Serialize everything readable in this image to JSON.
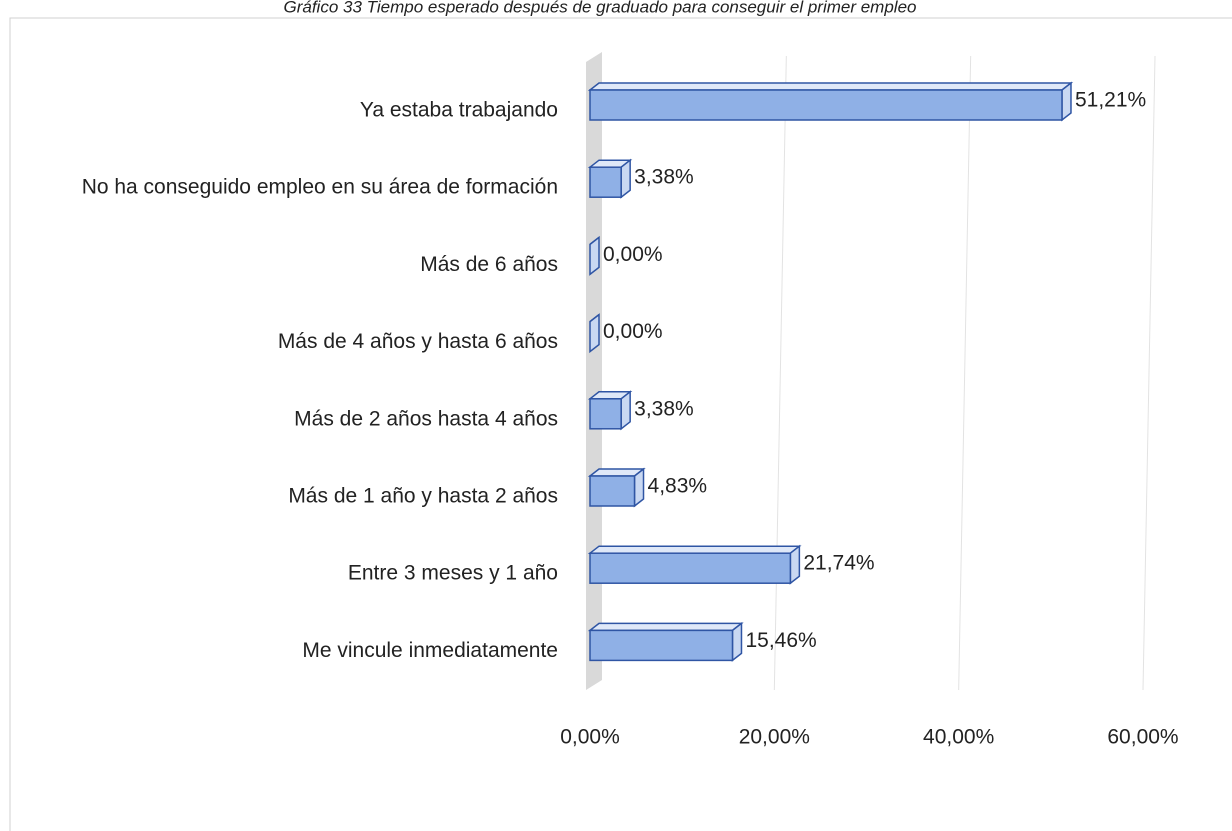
{
  "chart_data": {
    "type": "bar3d_horizontal",
    "title": "Gráfico 33 Tiempo esperado después de graduado para conseguir el primer empleo",
    "categories": [
      "Ya estaba trabajando",
      "No ha conseguido empleo en su área de formación",
      "Más de 6 años",
      "Más de 4 años y hasta 6 años",
      "Más de 2 años hasta 4 años",
      "Más de 1 año y hasta 2 años",
      "Entre 3 meses y 1 año",
      "Me vincule inmediatamente"
    ],
    "values": [
      51.21,
      3.38,
      0,
      0,
      3.38,
      4.83,
      21.74,
      15.46
    ],
    "value_labels": [
      "51,21%",
      "3,38%",
      "0,00%",
      "0,00%",
      "3,38%",
      "4,83%",
      "21,74%",
      "15,46%"
    ],
    "color": "#8fb0e6",
    "xlim": [
      0,
      60
    ],
    "xticks": [
      {
        "value": 0,
        "label": "0,00%"
      },
      {
        "value": 20,
        "label": "20,00%"
      },
      {
        "value": 40,
        "label": "40,00%"
      },
      {
        "value": 60,
        "label": "60,00%"
      }
    ],
    "grid": true
  }
}
